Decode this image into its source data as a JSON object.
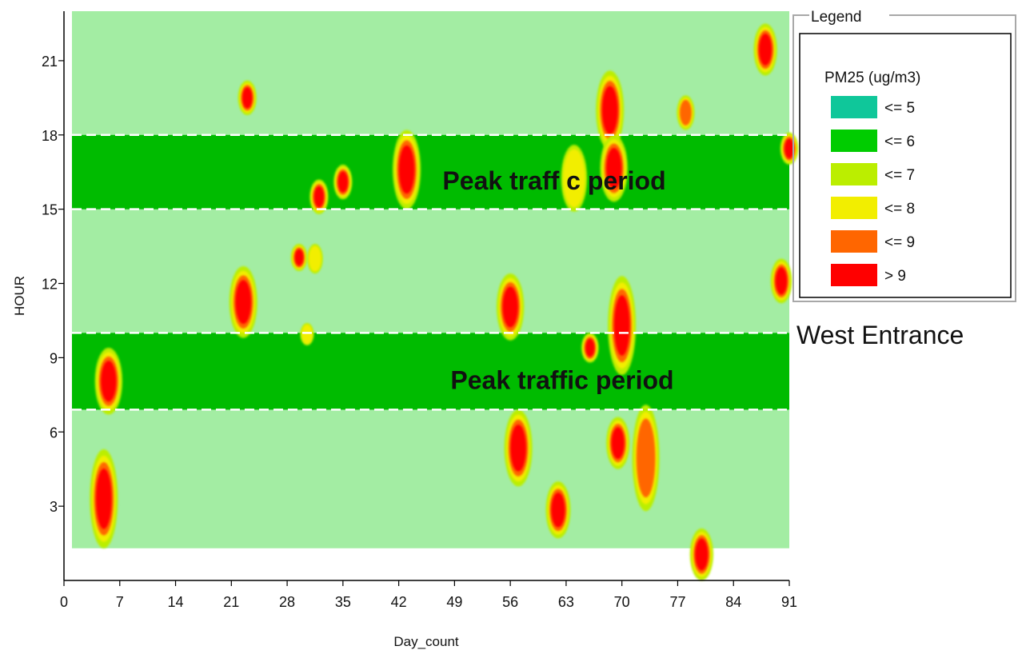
{
  "chart_data": {
    "type": "heatmap",
    "title": "",
    "xlabel": "Day_count",
    "ylabel": "HOUR",
    "xlim": [
      0,
      91
    ],
    "ylim": [
      0,
      23
    ],
    "x_ticks": [
      0,
      7,
      14,
      21,
      28,
      35,
      42,
      49,
      56,
      63,
      70,
      77,
      84,
      91
    ],
    "y_ticks": [
      3,
      6,
      9,
      12,
      15,
      18,
      21
    ],
    "grid": false,
    "value_name": "PM25 (ug/m3)",
    "base_level": "<= 6",
    "background_fill": {
      "x": [
        1,
        91
      ],
      "y": [
        1.3,
        23
      ],
      "level": "<= 6"
    },
    "peak_periods": [
      {
        "y": [
          6.9,
          10
        ],
        "label": "Peak traffic period"
      },
      {
        "y": [
          15,
          18
        ],
        "label": "Peak traff c period"
      }
    ],
    "legend": {
      "title": "Legend",
      "entries": [
        {
          "label": "<= 5",
          "color": "#0fc79a"
        },
        {
          "label": "<= 6",
          "color": "#00cc00"
        },
        {
          "label": "<= 7",
          "color": "#bbee00"
        },
        {
          "label": "<= 8",
          "color": "#f2ee00"
        },
        {
          "label": "<= 9",
          "color": "#ff6600"
        },
        {
          "label": "> 9",
          "color": "#ff0000"
        }
      ]
    },
    "hotspots": [
      {
        "day": 5,
        "hour_from": 1.3,
        "hour_to": 5.3,
        "level": "> 9"
      },
      {
        "day": 5.6,
        "hour_from": 6.7,
        "hour_to": 9.4,
        "level": "> 9"
      },
      {
        "day": 22.5,
        "hour_from": 9.8,
        "hour_to": 12.7,
        "level": "> 9"
      },
      {
        "day": 23,
        "hour_from": 18.8,
        "hour_to": 20.2,
        "level": "> 9"
      },
      {
        "day": 29.5,
        "hour_from": 12.5,
        "hour_to": 13.6,
        "level": "> 9"
      },
      {
        "day": 31.5,
        "hour_from": 12.4,
        "hour_to": 13.6,
        "level": "<= 8"
      },
      {
        "day": 30.5,
        "hour_from": 9.5,
        "hour_to": 10.4,
        "level": "<= 8"
      },
      {
        "day": 32,
        "hour_from": 14.8,
        "hour_to": 16.2,
        "level": "> 9"
      },
      {
        "day": 35,
        "hour_from": 15.4,
        "hour_to": 16.8,
        "level": "> 9"
      },
      {
        "day": 43,
        "hour_from": 15,
        "hour_to": 18.2,
        "level": "> 9"
      },
      {
        "day": 56,
        "hour_from": 9.7,
        "hour_to": 12.4,
        "level": "> 9"
      },
      {
        "day": 57,
        "hour_from": 3.8,
        "hour_to": 6.9,
        "level": "> 9"
      },
      {
        "day": 62,
        "hour_from": 1.7,
        "hour_to": 4,
        "level": "> 9"
      },
      {
        "day": 64,
        "hour_from": 14.9,
        "hour_to": 17.6,
        "level": "<= 8"
      },
      {
        "day": 66,
        "hour_from": 8.8,
        "hour_to": 10,
        "level": "> 9"
      },
      {
        "day": 68.5,
        "hour_from": 17.4,
        "hour_to": 20.6,
        "level": "> 9"
      },
      {
        "day": 69,
        "hour_from": 15.3,
        "hour_to": 18,
        "level": "> 9"
      },
      {
        "day": 69.5,
        "hour_from": 4.5,
        "hour_to": 6.6,
        "level": "> 9"
      },
      {
        "day": 70,
        "hour_from": 8.3,
        "hour_to": 12.3,
        "level": "> 9"
      },
      {
        "day": 73,
        "hour_from": 2.8,
        "hour_to": 7.1,
        "level": "<= 9"
      },
      {
        "day": 78,
        "hour_from": 18.2,
        "hour_to": 19.6,
        "level": "<= 9"
      },
      {
        "day": 80,
        "hour_from": 0,
        "hour_to": 2.1,
        "level": "> 9"
      },
      {
        "day": 88,
        "hour_from": 20.4,
        "hour_to": 22.5,
        "level": "> 9"
      },
      {
        "day": 90,
        "hour_from": 11.2,
        "hour_to": 13,
        "level": "> 9"
      },
      {
        "day": 91,
        "hour_from": 16.8,
        "hour_to": 18.1,
        "level": "> 9"
      }
    ]
  },
  "location_label": "West Entrance"
}
